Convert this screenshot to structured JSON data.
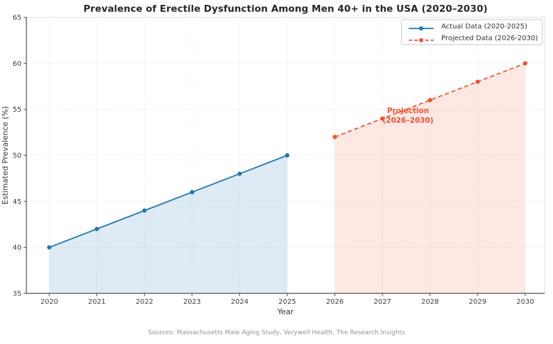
{
  "figure": {
    "title": "Prevalence of Erectile Dysfunction Among Men 40+ in the USA (2020–2030)",
    "source_note": "Sources: Massachusetts Male Aging Study, Verywell Health, The Research Insights"
  },
  "chart_data": {
    "type": "line",
    "title": "Prevalence of Erectile Dysfunction Among Men 40+ in the USA (2020–2030)",
    "xlabel": "Year",
    "ylabel": "Estimated Prevalence (%)",
    "xlim": [
      2020,
      2030
    ],
    "ylim": [
      35,
      65
    ],
    "xticks": [
      2020,
      2021,
      2022,
      2023,
      2024,
      2025,
      2026,
      2027,
      2028,
      2029,
      2030
    ],
    "yticks": [
      35,
      40,
      45,
      50,
      55,
      60,
      65
    ],
    "grid": true,
    "legend_position": "upper right",
    "series": [
      {
        "id": "actual",
        "name": "Actual Data (2020-2025)",
        "x": [
          2020,
          2021,
          2022,
          2023,
          2024,
          2025
        ],
        "values": [
          40,
          42,
          44,
          46,
          48,
          50
        ],
        "color": "#1f77b4",
        "fill_color": "rgba(31,119,180,0.15)",
        "line_style": "solid",
        "marker": "circle"
      },
      {
        "id": "projected",
        "name": "Projected Data (2026-2030)",
        "x": [
          2026,
          2027,
          2028,
          2029,
          2030
        ],
        "values": [
          52,
          54,
          56,
          58,
          60
        ],
        "color": "#f4502f",
        "fill_color": "rgba(244,80,47,0.13)",
        "line_style": "dashed",
        "marker": "circle"
      }
    ],
    "annotation": {
      "line1": "Projection",
      "line2": "(2026–2030)",
      "color": "#f4502f",
      "anchor_x": 2027,
      "anchor_y": 54
    }
  }
}
